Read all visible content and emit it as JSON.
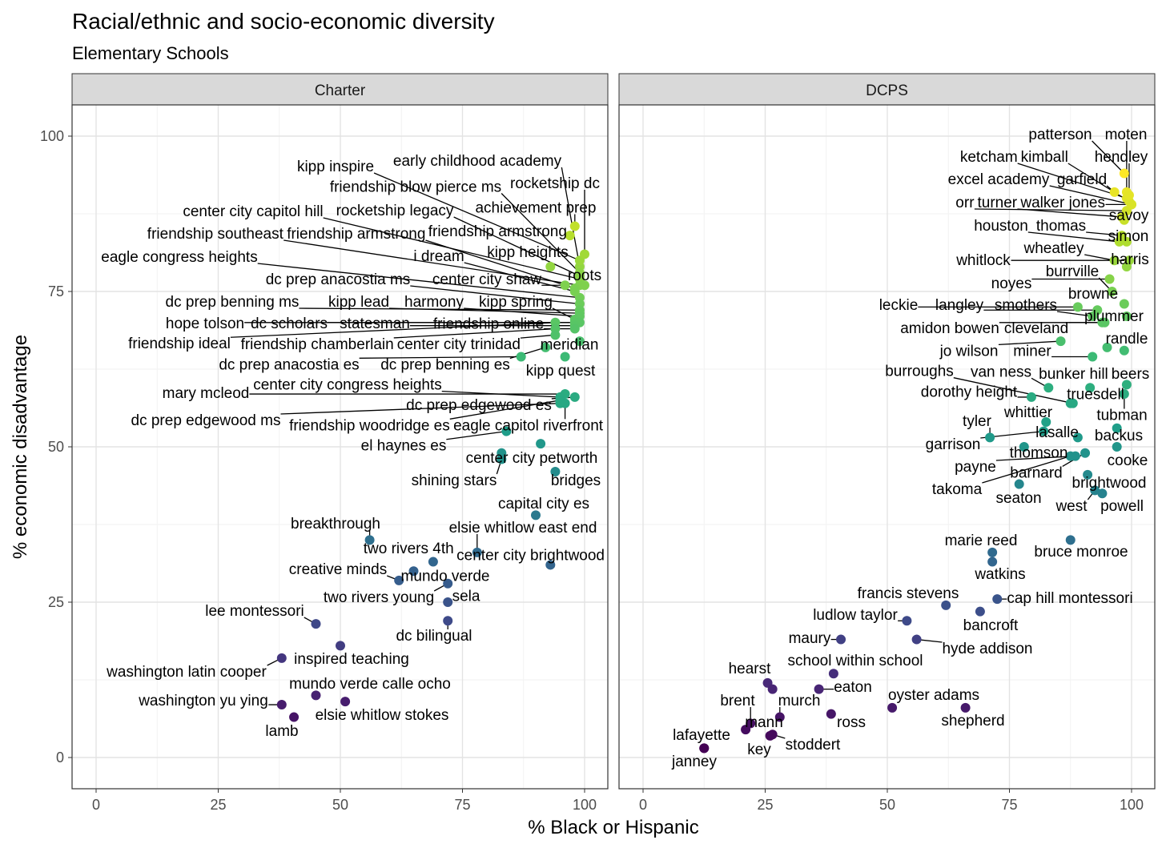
{
  "chart_data": {
    "type": "scatter",
    "title": "Racial/ethnic and socio-economic diversity",
    "subtitle": "Elementary Schools",
    "xlabel": "% Black or Hispanic",
    "ylabel": "% economic disadvantage",
    "xlim": [
      -5,
      105
    ],
    "ylim": [
      -5,
      105
    ],
    "x_ticks": [
      "0",
      "25",
      "50",
      "75",
      "100"
    ],
    "y_ticks": [
      "0",
      "25",
      "50",
      "75",
      "100"
    ],
    "grid": true,
    "color_scale": "viridis by % economic disadvantage",
    "panels": [
      {
        "name": "Charter",
        "points": [
          {
            "label": "early childhood academy",
            "x": 99,
            "y": 79
          },
          {
            "label": "kipp inspire",
            "x": 99,
            "y": 80
          },
          {
            "label": "friendship blow pierce ms",
            "x": 99,
            "y": 78
          },
          {
            "label": "rocketship dc",
            "x": 100,
            "y": 81
          },
          {
            "label": "achievement prep",
            "x": 98,
            "y": 85.5
          },
          {
            "label": "center city capitol hill",
            "x": 99,
            "y": 77
          },
          {
            "label": "rocketship legacy",
            "x": 99,
            "y": 77.5
          },
          {
            "label": "friendship armstrong",
            "x": 97,
            "y": 84
          },
          {
            "label": "friendship southeast",
            "x": 99,
            "y": 76
          },
          {
            "label": "friendship armstrong",
            "x": 98,
            "y": 75.5
          },
          {
            "label": "eagle congress heights",
            "x": 99,
            "y": 74
          },
          {
            "label": "i dream",
            "x": 98,
            "y": 75
          },
          {
            "label": "kipp heights",
            "x": 93,
            "y": 79
          },
          {
            "label": "roots",
            "x": 100,
            "y": 76
          },
          {
            "label": "dc prep anacostia ms",
            "x": 99,
            "y": 73
          },
          {
            "label": "center city shaw",
            "x": 96,
            "y": 76
          },
          {
            "label": "dc prep benning ms",
            "x": 99,
            "y": 72
          },
          {
            "label": "kipp lead",
            "x": 99,
            "y": 71.5
          },
          {
            "label": "harmony",
            "x": 99,
            "y": 71
          },
          {
            "label": "kipp spring",
            "x": 98,
            "y": 70.5
          },
          {
            "label": "hope tolson",
            "x": 99,
            "y": 70
          },
          {
            "label": "dc scholars",
            "x": 98,
            "y": 70
          },
          {
            "label": "statesman",
            "x": 98,
            "y": 69.5
          },
          {
            "label": "friendship online",
            "x": 98,
            "y": 69
          },
          {
            "label": "friendship ideal",
            "x": 94,
            "y": 70
          },
          {
            "label": "friendship chamberlain",
            "x": 94,
            "y": 69
          },
          {
            "label": "center city trinidad",
            "x": 94,
            "y": 68
          },
          {
            "label": "meridian",
            "x": 99,
            "y": 67
          },
          {
            "label": "dc prep anacostia es",
            "x": 87,
            "y": 64.5
          },
          {
            "label": "dc prep benning es",
            "x": 92,
            "y": 66
          },
          {
            "label": "kipp quest",
            "x": 96,
            "y": 64.5
          },
          {
            "label": "mary mcleod",
            "x": 96,
            "y": 58.5
          },
          {
            "label": "center city congress heights",
            "x": 95,
            "y": 58
          },
          {
            "label": "dc prep edgewood es",
            "x": 98,
            "y": 58
          },
          {
            "label": "dc prep edgewood ms",
            "x": 95,
            "y": 57
          },
          {
            "label": "friendship woodridge es",
            "x": 95,
            "y": 57.5
          },
          {
            "label": "eagle capitol riverfront",
            "x": 96,
            "y": 57
          },
          {
            "label": "el haynes es",
            "x": 84,
            "y": 52.5
          },
          {
            "x": 91,
            "y": 50.5
          },
          {
            "label": "center city petworth",
            "x": 83,
            "y": 49
          },
          {
            "label": "shining stars",
            "x": 83,
            "y": 48
          },
          {
            "label": "bridges",
            "x": 94,
            "y": 46
          },
          {
            "label": "capital city es",
            "x": 90,
            "y": 39
          },
          {
            "label": "breakthrough",
            "x": 56,
            "y": 35
          },
          {
            "label": "elsie whitlow east end",
            "x": 78,
            "y": 33
          },
          {
            "label": "two rivers 4th",
            "x": 69,
            "y": 31.5
          },
          {
            "label": "center city brightwood",
            "x": 93,
            "y": 31
          },
          {
            "label": "creative minds",
            "x": 62,
            "y": 28.5
          },
          {
            "label": "mundo verde",
            "x": 65,
            "y": 30
          },
          {
            "label": "two rivers young",
            "x": 72,
            "y": 28
          },
          {
            "label": "sela",
            "x": 72,
            "y": 25
          },
          {
            "label": "lee montessori",
            "x": 45,
            "y": 21.5
          },
          {
            "label": "dc bilingual",
            "x": 72,
            "y": 22
          },
          {
            "label": "inspired teaching",
            "x": 50,
            "y": 18
          },
          {
            "label": "washington latin cooper",
            "x": 38,
            "y": 16
          },
          {
            "label": "mundo verde calle ocho",
            "x": 45,
            "y": 10
          },
          {
            "label": "washington yu ying",
            "x": 38,
            "y": 8.5
          },
          {
            "label": "elsie whitlow stokes",
            "x": 51,
            "y": 9
          },
          {
            "label": "lamb",
            "x": 40.5,
            "y": 6.5
          }
        ]
      },
      {
        "name": "DCPS",
        "points": [
          {
            "label": "patterson",
            "x": 98.5,
            "y": 94
          },
          {
            "label": "moten",
            "x": 99,
            "y": 91
          },
          {
            "label": "ketcham",
            "x": 99,
            "y": 90
          },
          {
            "label": "kimball",
            "x": 99.5,
            "y": 89.5
          },
          {
            "label": "hendley",
            "x": 99.5,
            "y": 90.5
          },
          {
            "label": "excel academy",
            "x": 100,
            "y": 89
          },
          {
            "label": "garfield",
            "x": 96.5,
            "y": 91
          },
          {
            "label": "orr",
            "x": 99,
            "y": 88
          },
          {
            "label": "turner",
            "x": 98,
            "y": 87
          },
          {
            "label": "walker jones",
            "x": 100,
            "y": 89
          },
          {
            "label": "savoy",
            "x": 98.5,
            "y": 86.5
          },
          {
            "label": "houston",
            "x": 97.5,
            "y": 83
          },
          {
            "label": "thomas",
            "x": 98,
            "y": 84
          },
          {
            "label": "simon",
            "x": 99,
            "y": 83
          },
          {
            "label": "wheatley",
            "x": 96.5,
            "y": 80
          },
          {
            "label": "whitlock",
            "x": 99.5,
            "y": 80
          },
          {
            "label": "harris",
            "x": 99,
            "y": 79
          },
          {
            "label": "burrville",
            "x": 96,
            "y": 75
          },
          {
            "label": "noyes",
            "x": 95.5,
            "y": 77
          },
          {
            "label": "browne",
            "x": 98.5,
            "y": 73
          },
          {
            "label": "leckie",
            "x": 89,
            "y": 72.5
          },
          {
            "label": "langley",
            "x": 93,
            "y": 72
          },
          {
            "label": "smothers",
            "x": 92,
            "y": 71
          },
          {
            "label": "plummer",
            "x": 99,
            "y": 71
          },
          {
            "label": "amidon bowen",
            "x": 94,
            "y": 70
          },
          {
            "label": "cleveland",
            "x": 94.5,
            "y": 70
          },
          {
            "label": "randle",
            "x": 95,
            "y": 66
          },
          {
            "label": "jo wilson",
            "x": 85.5,
            "y": 67
          },
          {
            "label": "miner",
            "x": 92,
            "y": 64.5
          },
          {
            "x": 98.5,
            "y": 65.5
          },
          {
            "label": "burroughs",
            "x": 88,
            "y": 57
          },
          {
            "label": "van ness",
            "x": 83,
            "y": 59.5
          },
          {
            "label": "bunker hill",
            "x": 91.5,
            "y": 59.5
          },
          {
            "label": "beers",
            "x": 99,
            "y": 60
          },
          {
            "label": "dorothy height",
            "x": 79.5,
            "y": 58
          },
          {
            "label": "truesdell",
            "x": 87.5,
            "y": 57
          },
          {
            "label": "tubman",
            "x": 98.5,
            "y": 58.5
          },
          {
            "label": "tyler",
            "x": 71,
            "y": 51.5
          },
          {
            "label": "whittier",
            "x": 82.5,
            "y": 54
          },
          {
            "label": "garrison",
            "x": 82,
            "y": 52.5
          },
          {
            "label": "lasalle",
            "x": 89,
            "y": 51.5
          },
          {
            "label": "backus",
            "x": 97,
            "y": 53
          },
          {
            "label": "thomson",
            "x": 78,
            "y": 50
          },
          {
            "label": "cooke",
            "x": 97,
            "y": 50
          },
          {
            "label": "payne",
            "x": 88.5,
            "y": 48.5
          },
          {
            "label": "barnard",
            "x": 90.5,
            "y": 49
          },
          {
            "label": "takoma",
            "x": 87.5,
            "y": 48.5
          },
          {
            "label": "brightwood",
            "x": 91,
            "y": 45.5
          },
          {
            "label": "seaton",
            "x": 77,
            "y": 44
          },
          {
            "label": "west",
            "x": 92.5,
            "y": 43
          },
          {
            "label": "powell",
            "x": 94,
            "y": 42.5
          },
          {
            "label": "marie reed",
            "x": 71.5,
            "y": 33
          },
          {
            "label": "bruce monroe",
            "x": 87.5,
            "y": 35
          },
          {
            "label": "watkins",
            "x": 71.5,
            "y": 31.5
          },
          {
            "label": "francis stevens",
            "x": 62,
            "y": 24.5
          },
          {
            "label": "cap hill montessori",
            "x": 72.5,
            "y": 25.5
          },
          {
            "label": "bancroft",
            "x": 69,
            "y": 23.5
          },
          {
            "label": "ludlow taylor",
            "x": 54,
            "y": 22
          },
          {
            "label": "hyde addison",
            "x": 56,
            "y": 19
          },
          {
            "label": "maury",
            "x": 40.5,
            "y": 19
          },
          {
            "label": "school within school",
            "x": 39,
            "y": 13.5
          },
          {
            "label": "hearst",
            "x": 25.5,
            "y": 12
          },
          {
            "x": 26.5,
            "y": 11
          },
          {
            "label": "eaton",
            "x": 36,
            "y": 11
          },
          {
            "label": "oyster adams",
            "x": 51,
            "y": 8
          },
          {
            "label": "shepherd",
            "x": 66,
            "y": 8
          },
          {
            "label": "murch",
            "x": 28,
            "y": 6.5
          },
          {
            "label": "ross",
            "x": 38.5,
            "y": 7
          },
          {
            "label": "brent",
            "x": 22,
            "y": 5.5
          },
          {
            "label": "mann",
            "x": 21,
            "y": 4.5
          },
          {
            "label": "key",
            "x": 26,
            "y": 3.5
          },
          {
            "label": "stoddert",
            "x": 26.5,
            "y": 3.7
          },
          {
            "label": "lafayette",
            "x": 12.5,
            "y": 1.5
          },
          {
            "label": "janney",
            "x": 12.5,
            "y": 1.5
          }
        ]
      }
    ]
  }
}
